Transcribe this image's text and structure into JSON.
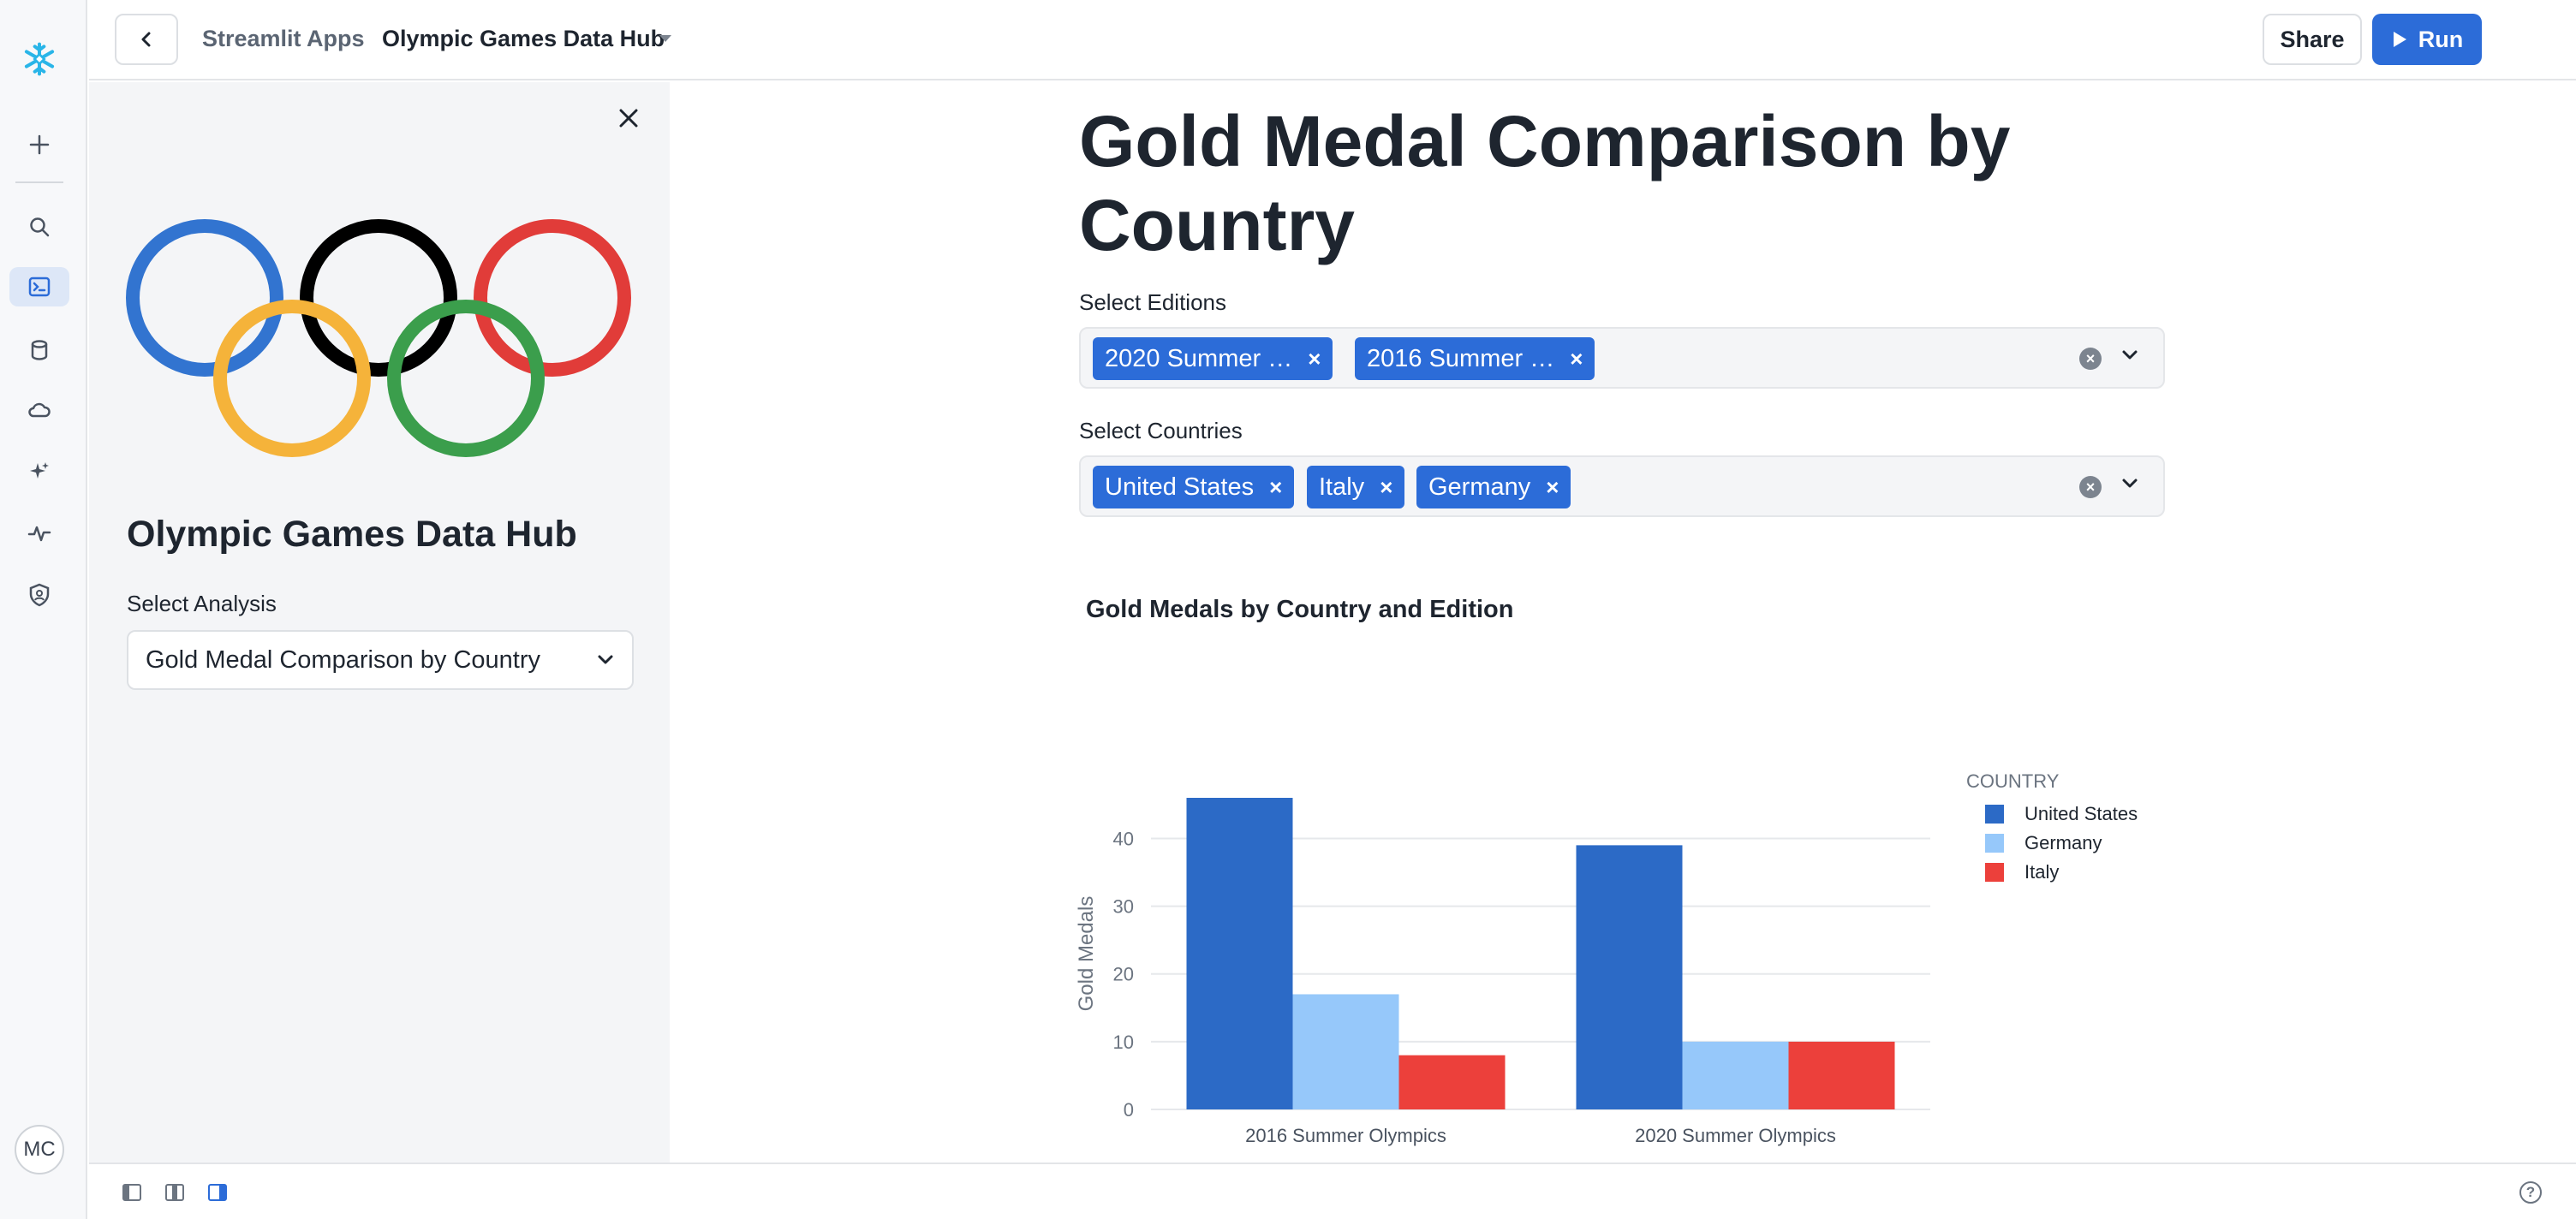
{
  "topbar": {
    "crumb_app": "Streamlit Apps",
    "crumb_current": "Olympic Games Data Hub",
    "share_label": "Share",
    "run_label": "Run"
  },
  "rail": {
    "items": [
      "snowflake-logo-icon",
      "plus-icon",
      "search-icon",
      "code-icon",
      "database-icon",
      "cloud-icon",
      "sparkle-icon",
      "activity-icon",
      "shield-icon"
    ],
    "active": "code-icon",
    "avatar_initials": "MC"
  },
  "sidebar": {
    "title": "Olympic Games Data Hub",
    "select_label": "Select Analysis",
    "select_value": "Gold Medal Comparison by Country",
    "ring_colors": [
      "#3274d0",
      "#000000",
      "#e13c39",
      "#f5b33a",
      "#3b9e4c"
    ]
  },
  "main": {
    "title": "Gold Medal Comparison by Country",
    "editions_label": "Select Editions",
    "editions": [
      "2020 Summer …",
      "2016 Summer …"
    ],
    "countries_label": "Select Countries",
    "countries": [
      "United States",
      "Italy",
      "Germany"
    ],
    "chart_title": "Gold Medals by Country and Edition"
  },
  "chart_data": {
    "type": "bar",
    "title": "Gold Medals by Country and Edition",
    "categories": [
      "2016 Summer Olympics",
      "2020 Summer Olympics"
    ],
    "series": [
      {
        "name": "United States",
        "values": [
          46,
          39
        ],
        "color": "#2c6ac6"
      },
      {
        "name": "Germany",
        "values": [
          17,
          10
        ],
        "color": "#96c8fa"
      },
      {
        "name": "Italy",
        "values": [
          8,
          10
        ],
        "color": "#ec403b"
      }
    ],
    "xlabel": "",
    "ylabel": "Gold Medals",
    "ylim": [
      0,
      46
    ],
    "yticks": [
      0,
      10,
      20,
      30,
      40
    ],
    "legend_title": "COUNTRY",
    "legend": "right",
    "grid": true
  }
}
